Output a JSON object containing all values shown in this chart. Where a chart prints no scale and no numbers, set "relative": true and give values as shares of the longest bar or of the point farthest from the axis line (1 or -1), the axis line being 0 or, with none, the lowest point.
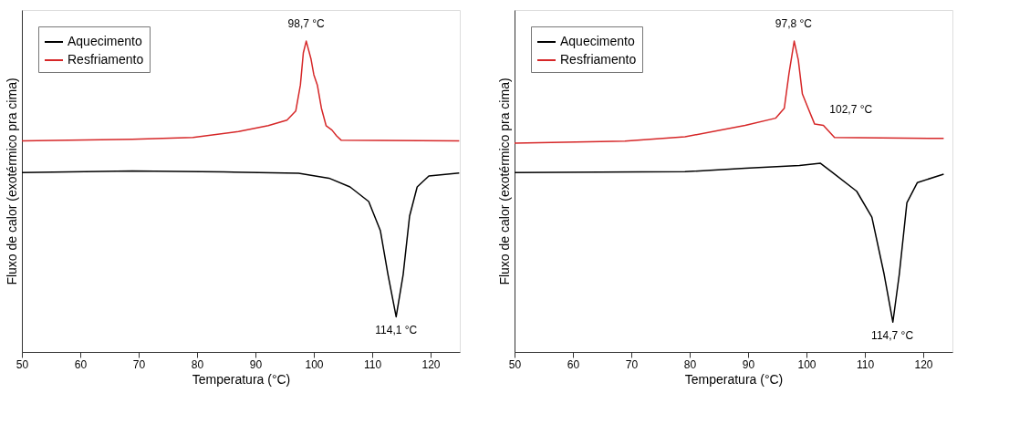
{
  "chart_data": [
    {
      "type": "line",
      "relative": true,
      "xlabel": "Temperatura (°C)",
      "ylabel": "Fluxo de calor (exotérmico pra cima)",
      "xlim": [
        50,
        125
      ],
      "xticks": [
        50,
        60,
        70,
        80,
        90,
        100,
        110,
        120
      ],
      "tick_labels": "x",
      "legend": "top left",
      "grid": false,
      "series": [
        {
          "name": "Aquecimento",
          "color": "#000000",
          "x": [
            50,
            68.9,
            84.5,
            97.4,
            102.6,
            106.2,
            109.4,
            111.4,
            112.7,
            114.1,
            115.3,
            116.4,
            117.7,
            119.7,
            124.9
          ],
          "values": [
            0.577,
            0.582,
            0.579,
            0.575,
            0.559,
            0.531,
            0.484,
            0.39,
            0.249,
            0.113,
            0.249,
            0.437,
            0.531,
            0.566,
            0.576
          ]
        },
        {
          "name": "Resfriamento",
          "color": "#d62728",
          "x": [
            50,
            68.9,
            79.3,
            87.1,
            92.2,
            95.4,
            96.9,
            97.7,
            98.2,
            98.7,
            99.5,
            100.0,
            100.6,
            101.3,
            102.1,
            103.1,
            103.9,
            104.7,
            124.9
          ],
          "values": [
            0.679,
            0.684,
            0.69,
            0.709,
            0.728,
            0.746,
            0.775,
            0.859,
            0.962,
            1.0,
            0.944,
            0.892,
            0.859,
            0.784,
            0.728,
            0.714,
            0.695,
            0.681,
            0.679
          ]
        }
      ],
      "annotations": [
        {
          "text": "98,7 °C",
          "x": 98.7,
          "y": 1.0
        },
        {
          "text": "114,1 °C",
          "x": 114.1,
          "y": 0.113
        }
      ]
    },
    {
      "type": "line",
      "relative": true,
      "xlabel": "Temperatura (°C)",
      "ylabel": "Fluxo de calor (exotérmico pra cima)",
      "xlim": [
        50,
        125
      ],
      "xticks": [
        50,
        60,
        70,
        80,
        90,
        100,
        110,
        120
      ],
      "tick_labels": "x",
      "legend": "top left",
      "grid": false,
      "series": [
        {
          "name": "Aquecimento",
          "color": "#000000",
          "x": [
            50,
            79.2,
            89.5,
            98.8,
            102.4,
            104.5,
            108.6,
            111.2,
            113.3,
            114.8,
            115.9,
            117.2,
            119.0,
            123.5
          ],
          "values": [
            0.577,
            0.58,
            0.591,
            0.6,
            0.607,
            0.577,
            0.517,
            0.434,
            0.25,
            0.096,
            0.25,
            0.48,
            0.545,
            0.572
          ]
        },
        {
          "name": "Resfriamento",
          "color": "#d62728",
          "x": [
            50,
            68.9,
            79.2,
            89.5,
            94.7,
            96.2,
            97.0,
            97.9,
            98.6,
            99.3,
            100.1,
            101.4,
            102.9,
            104.8,
            123.5
          ],
          "values": [
            0.672,
            0.678,
            0.692,
            0.729,
            0.752,
            0.784,
            0.895,
            1.0,
            0.94,
            0.83,
            0.793,
            0.733,
            0.729,
            0.69,
            0.687
          ]
        }
      ],
      "annotations": [
        {
          "text": "97,8 °C",
          "x": 97.8,
          "y": 1.0
        },
        {
          "text": "102,7 °C",
          "x": 102.7,
          "y": 0.729
        },
        {
          "text": "114,7 °C",
          "x": 114.7,
          "y": 0.096
        }
      ]
    }
  ]
}
